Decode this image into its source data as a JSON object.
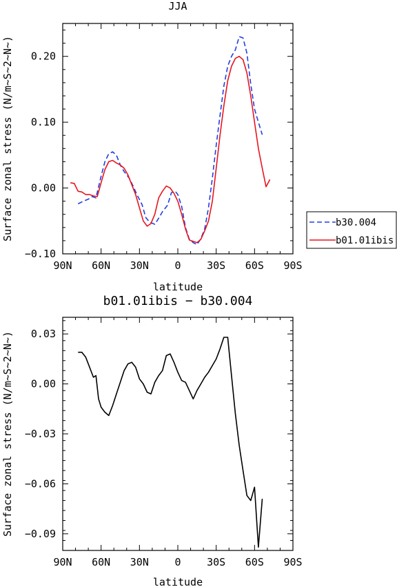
{
  "chart_data": [
    {
      "type": "line",
      "title": "JJA",
      "xlabel": "latitude",
      "ylabel": "Surface zonal stress (N/m~S~2~N~)",
      "xlim": [
        90,
        -90
      ],
      "ylim": [
        -0.1,
        0.25
      ],
      "x_ticks": [
        90,
        60,
        30,
        0,
        -30,
        -60,
        -90
      ],
      "x_tick_labels": [
        "90N",
        "60N",
        "30N",
        "0",
        "30S",
        "60S",
        "90S"
      ],
      "y_ticks": [
        -0.1,
        0.0,
        0.1,
        0.2
      ],
      "y_tick_labels": [
        "−0.10",
        "0.00",
        "0.10",
        "0.20"
      ],
      "legend_position": "outside-right",
      "series": [
        {
          "name": "b30.004",
          "color": "#1f3fe0",
          "dash": "dashed",
          "x": [
            78,
            74,
            70,
            67,
            64,
            60,
            57,
            54,
            51,
            48,
            45,
            42,
            38,
            35,
            32,
            28,
            25,
            22,
            18,
            15,
            12,
            8,
            5,
            2,
            0,
            -3,
            -6,
            -9,
            -12,
            -15,
            -18,
            -21,
            -24,
            -27,
            -30,
            -33,
            -36,
            -39,
            -42,
            -45,
            -48,
            -51,
            -54,
            -57,
            -60,
            -63,
            -66
          ],
          "y": [
            -0.024,
            -0.02,
            -0.017,
            -0.013,
            -0.015,
            0.018,
            0.04,
            0.052,
            0.055,
            0.05,
            0.035,
            0.025,
            0.015,
            0.003,
            -0.01,
            -0.025,
            -0.045,
            -0.052,
            -0.055,
            -0.046,
            -0.036,
            -0.026,
            -0.007,
            -0.005,
            -0.01,
            -0.028,
            -0.06,
            -0.078,
            -0.083,
            -0.086,
            -0.077,
            -0.062,
            -0.03,
            0.015,
            0.065,
            0.11,
            0.155,
            0.185,
            0.2,
            0.21,
            0.23,
            0.228,
            0.205,
            0.158,
            0.12,
            0.1,
            0.081
          ]
        },
        {
          "name": "b01.01ibis",
          "color": "#e8141c",
          "dash": "solid",
          "x": [
            84,
            81,
            78,
            75,
            72,
            69,
            66,
            63,
            60,
            57,
            54,
            51,
            48,
            45,
            42,
            39,
            36,
            33,
            30,
            27,
            24,
            21,
            18,
            15,
            12,
            9,
            6,
            3,
            0,
            -3,
            -6,
            -9,
            -12,
            -15,
            -18,
            -21,
            -24,
            -27,
            -30,
            -33,
            -36,
            -39,
            -42,
            -45,
            -48,
            -51,
            -54,
            -57,
            -60,
            -63,
            -66,
            -69,
            -72
          ],
          "y": [
            0.008,
            0.007,
            -0.005,
            -0.006,
            -0.01,
            -0.01,
            -0.012,
            -0.013,
            0.008,
            0.028,
            0.04,
            0.042,
            0.038,
            0.035,
            0.03,
            0.02,
            0.005,
            -0.01,
            -0.03,
            -0.05,
            -0.058,
            -0.054,
            -0.04,
            -0.015,
            -0.005,
            0.003,
            0.0,
            -0.008,
            -0.02,
            -0.04,
            -0.062,
            -0.079,
            -0.081,
            -0.083,
            -0.078,
            -0.065,
            -0.05,
            -0.02,
            0.03,
            0.08,
            0.125,
            0.163,
            0.185,
            0.197,
            0.2,
            0.195,
            0.175,
            0.14,
            0.1,
            0.06,
            0.03,
            0.002,
            0.013
          ]
        }
      ]
    },
    {
      "type": "line",
      "title": "b01.01ibis − b30.004",
      "xlabel": "latitude",
      "ylabel": "Surface zonal stress (N/m~S~2~N~)",
      "xlim": [
        90,
        -90
      ],
      "ylim": [
        -0.1,
        0.04
      ],
      "x_ticks": [
        90,
        60,
        30,
        0,
        -30,
        -60,
        -90
      ],
      "x_tick_labels": [
        "90N",
        "60N",
        "30N",
        "0",
        "30S",
        "60S",
        "90S"
      ],
      "y_ticks": [
        -0.09,
        -0.06,
        -0.03,
        0.0,
        0.03
      ],
      "y_tick_labels": [
        "−0.09",
        "−0.06",
        "−0.03",
        "0.00",
        "0.03"
      ],
      "series": [
        {
          "color": "#000000",
          "dash": "solid",
          "x": [
            78,
            75,
            72,
            69,
            66,
            64,
            62,
            60,
            57,
            54,
            51,
            48,
            45,
            42,
            39,
            36,
            33,
            30,
            27,
            24,
            21,
            18,
            15,
            12,
            9,
            6,
            3,
            0,
            -3,
            -6,
            -9,
            -12,
            -15,
            -18,
            -21,
            -24,
            -27,
            -30,
            -33,
            -36,
            -39,
            -42,
            -45,
            -48,
            -51,
            -54,
            -57,
            -60,
            -63,
            -66
          ],
          "y": [
            0.019,
            0.019,
            0.016,
            0.01,
            0.004,
            0.005,
            -0.009,
            -0.014,
            -0.017,
            -0.019,
            -0.013,
            -0.006,
            0.001,
            0.008,
            0.012,
            0.013,
            0.01,
            0.003,
            0.0,
            -0.005,
            -0.006,
            0.001,
            0.005,
            0.008,
            0.017,
            0.018,
            0.013,
            0.007,
            0.002,
            0.001,
            -0.004,
            -0.009,
            -0.004,
            0.0,
            0.004,
            0.007,
            0.011,
            0.015,
            0.021,
            0.028,
            0.028,
            0.005,
            -0.018,
            -0.037,
            -0.052,
            -0.067,
            -0.07,
            -0.062,
            -0.098,
            -0.069
          ]
        }
      ]
    }
  ],
  "legend": {
    "items": [
      {
        "label": "b30.004",
        "color": "#1f3fe0",
        "dash": "dashed"
      },
      {
        "label": "b01.01ibis",
        "color": "#e8141c",
        "dash": "solid"
      }
    ]
  }
}
